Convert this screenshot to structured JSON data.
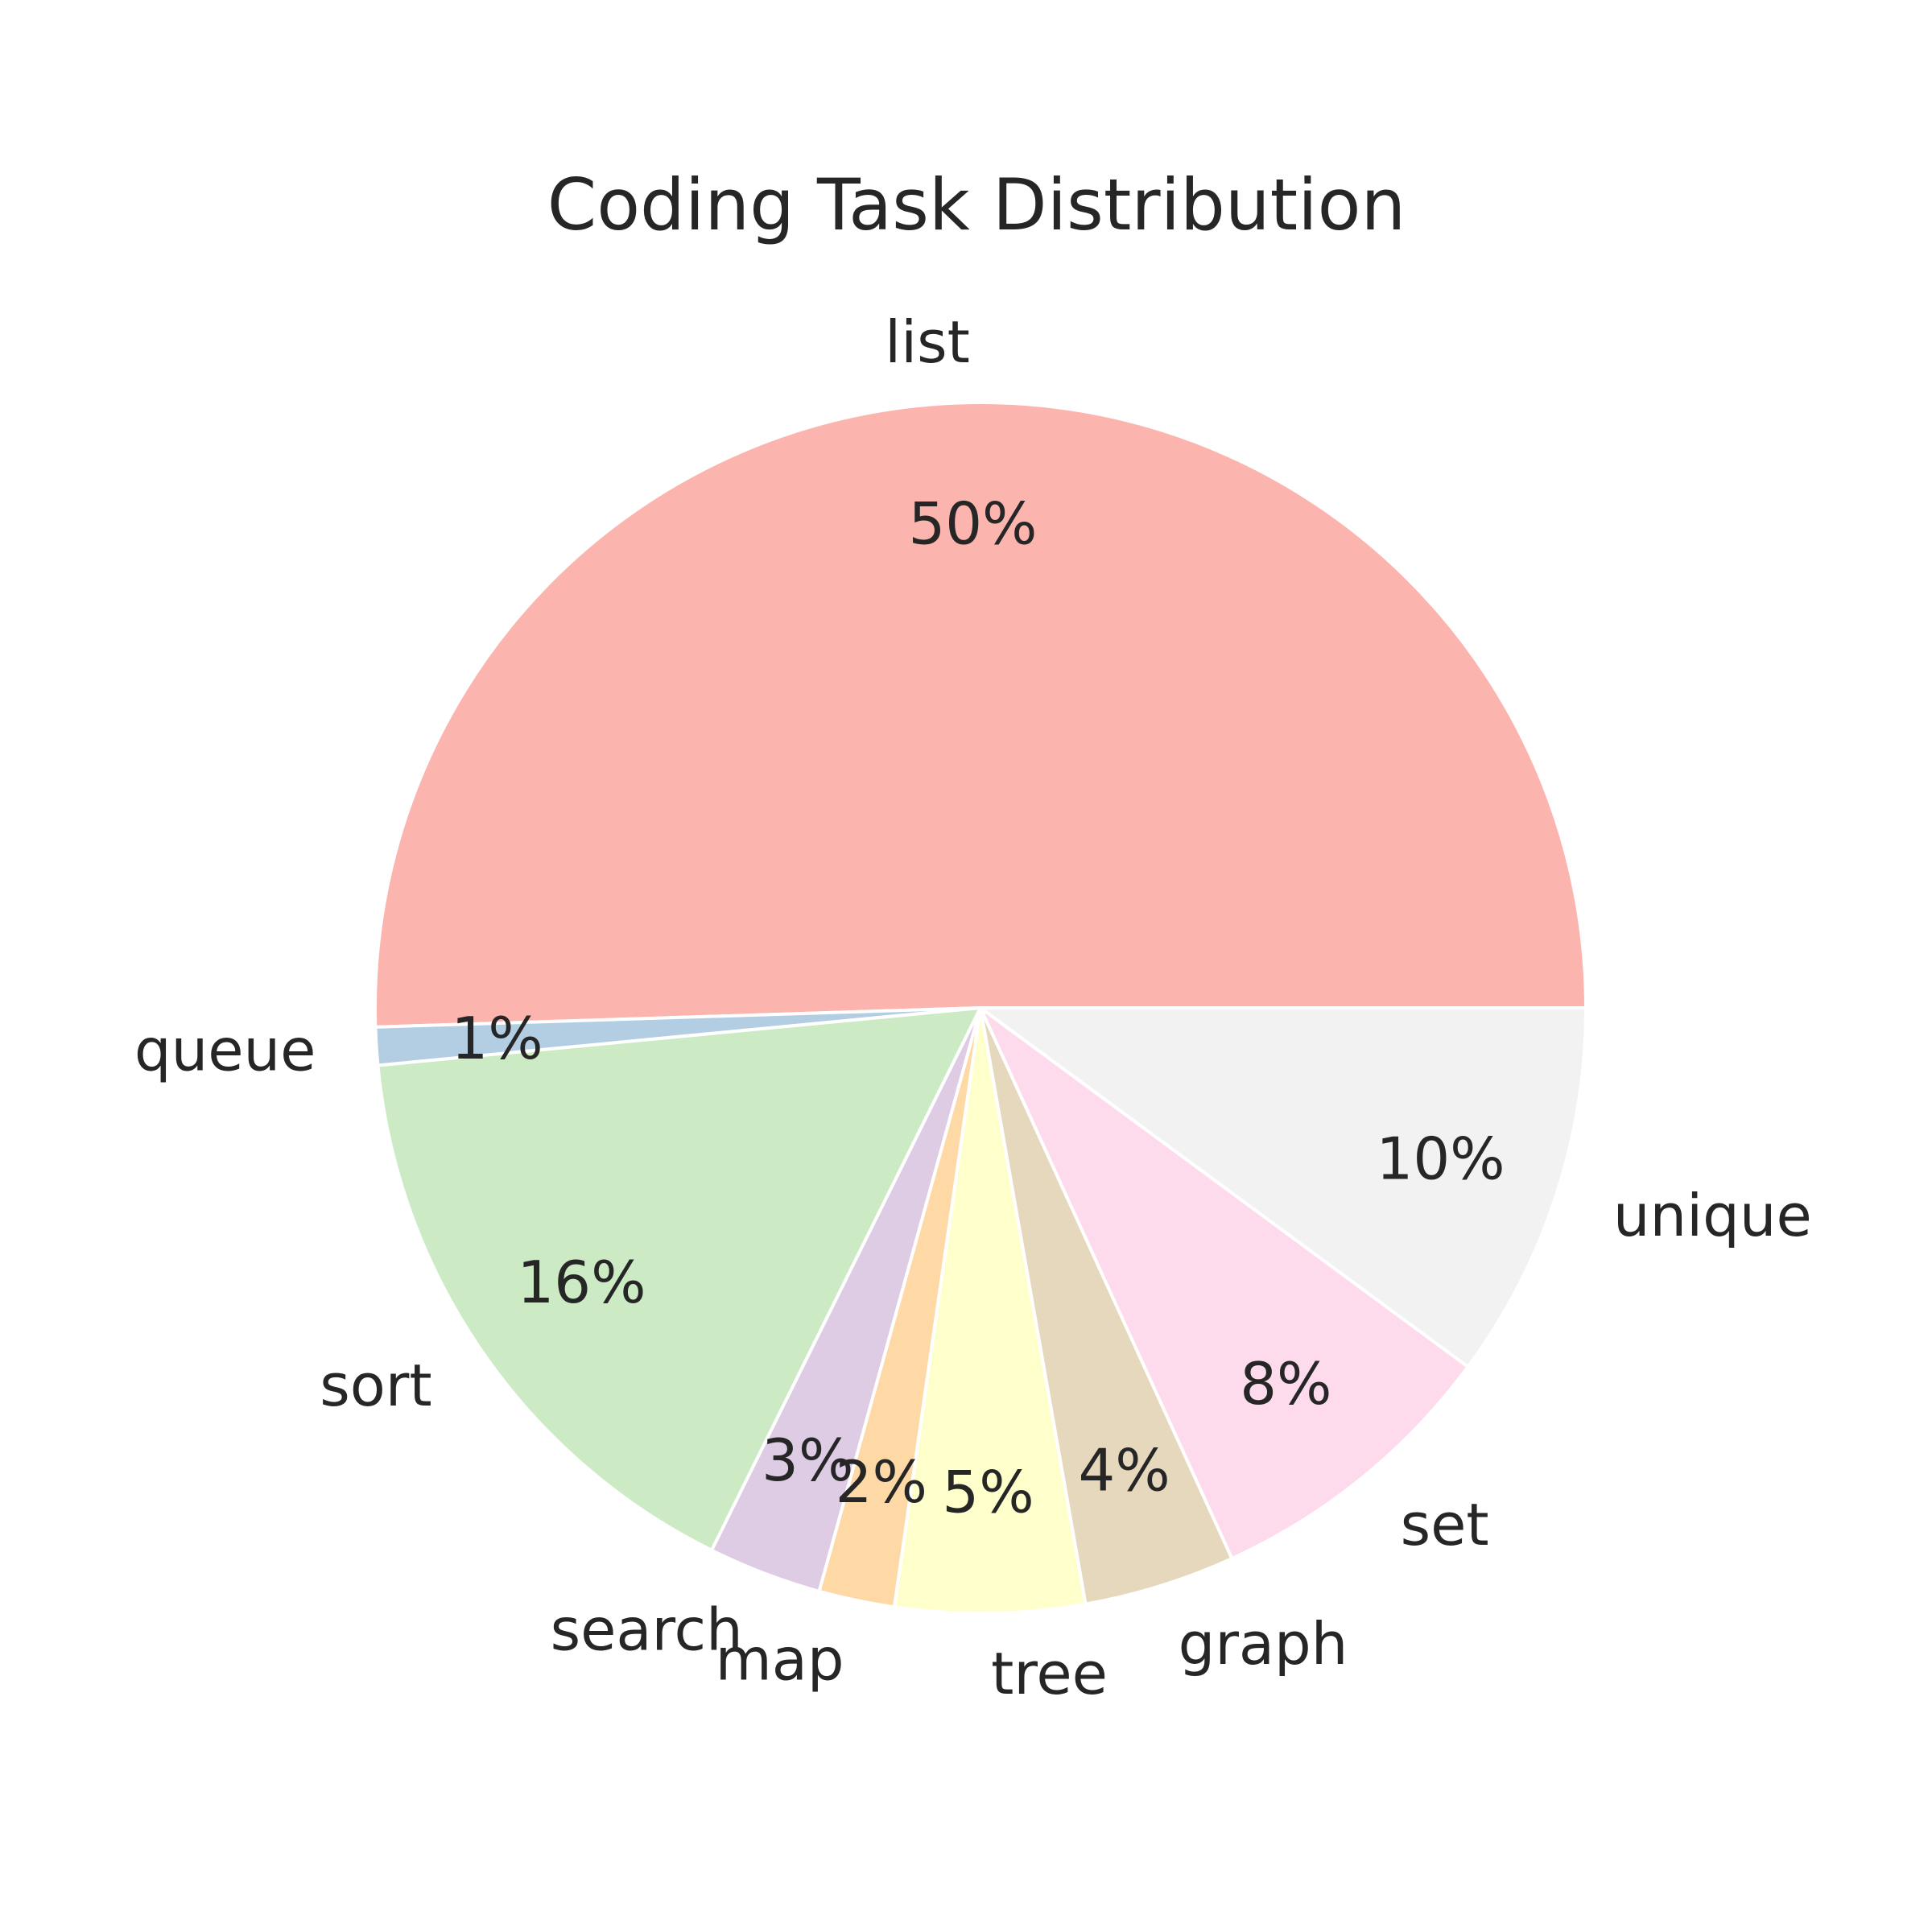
{
  "chart_data": {
    "type": "pie",
    "title": "Coding Task Distribution",
    "start_angle_deg": 0,
    "direction": "counterclockwise",
    "slices": [
      {
        "label": "list",
        "value": 50,
        "pct_label": "50%",
        "color": "#fbb4ae"
      },
      {
        "label": "queue",
        "value": 1,
        "pct_label": "1%",
        "color": "#b3cde3"
      },
      {
        "label": "sort",
        "value": 16,
        "pct_label": "16%",
        "color": "#ccebc5"
      },
      {
        "label": "search",
        "value": 3,
        "pct_label": "3%",
        "color": "#decbe4"
      },
      {
        "label": "map",
        "value": 2,
        "pct_label": "2%",
        "color": "#fed9a6"
      },
      {
        "label": "tree",
        "value": 5,
        "pct_label": "5%",
        "color": "#ffffcc"
      },
      {
        "label": "graph",
        "value": 4,
        "pct_label": "4%",
        "color": "#e5d8bd"
      },
      {
        "label": "set",
        "value": 8,
        "pct_label": "8%",
        "color": "#fddaec"
      },
      {
        "label": "unique",
        "value": 10,
        "pct_label": "10%",
        "color": "#f2f2f2"
      }
    ]
  }
}
